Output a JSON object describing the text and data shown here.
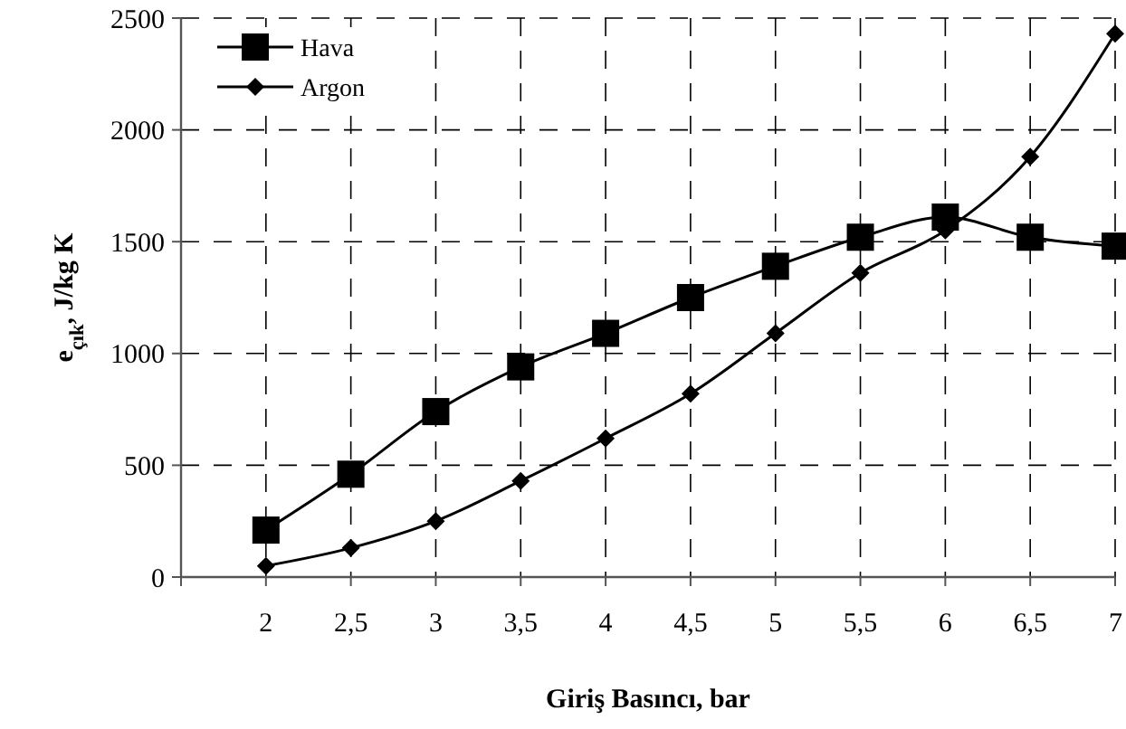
{
  "chart_data": {
    "type": "line",
    "xlabel": "Giriş Basıncı, bar",
    "ylabel": "e$_{çık}$, J/kg K",
    "x": [
      2,
      2.5,
      3,
      3.5,
      4,
      4.5,
      5,
      5.5,
      6,
      6.5,
      7
    ],
    "series": [
      {
        "name": "Hava",
        "color": "#000000",
        "marker": "square",
        "values": [
          210,
          460,
          740,
          940,
          1090,
          1250,
          1390,
          1520,
          1610,
          1520,
          1480
        ]
      },
      {
        "name": "Argon",
        "color": "#000000",
        "marker": "diamond",
        "values": [
          50,
          130,
          250,
          430,
          620,
          820,
          1090,
          1360,
          1550,
          1880,
          2430
        ]
      }
    ],
    "xlim": [
      1.5,
      7
    ],
    "xticks": [
      {
        "value": 1.5,
        "label": null
      },
      {
        "value": 2,
        "label": "2"
      },
      {
        "value": 2.5,
        "label": "2,5"
      },
      {
        "value": 3,
        "label": "3"
      },
      {
        "value": 3.5,
        "label": "3,5"
      },
      {
        "value": 4,
        "label": "4"
      },
      {
        "value": 4.5,
        "label": "4,5"
      },
      {
        "value": 5,
        "label": "5"
      },
      {
        "value": 5.5,
        "label": "5,5"
      },
      {
        "value": 6,
        "label": "6"
      },
      {
        "value": 6.5,
        "label": "6,5"
      },
      {
        "value": 7,
        "label": "7"
      }
    ],
    "ylim": [
      0,
      2500
    ],
    "yticks": [
      0,
      500,
      1000,
      1500,
      2000,
      2500
    ],
    "grid": true,
    "legend": "top left",
    "line_style": "solid"
  }
}
